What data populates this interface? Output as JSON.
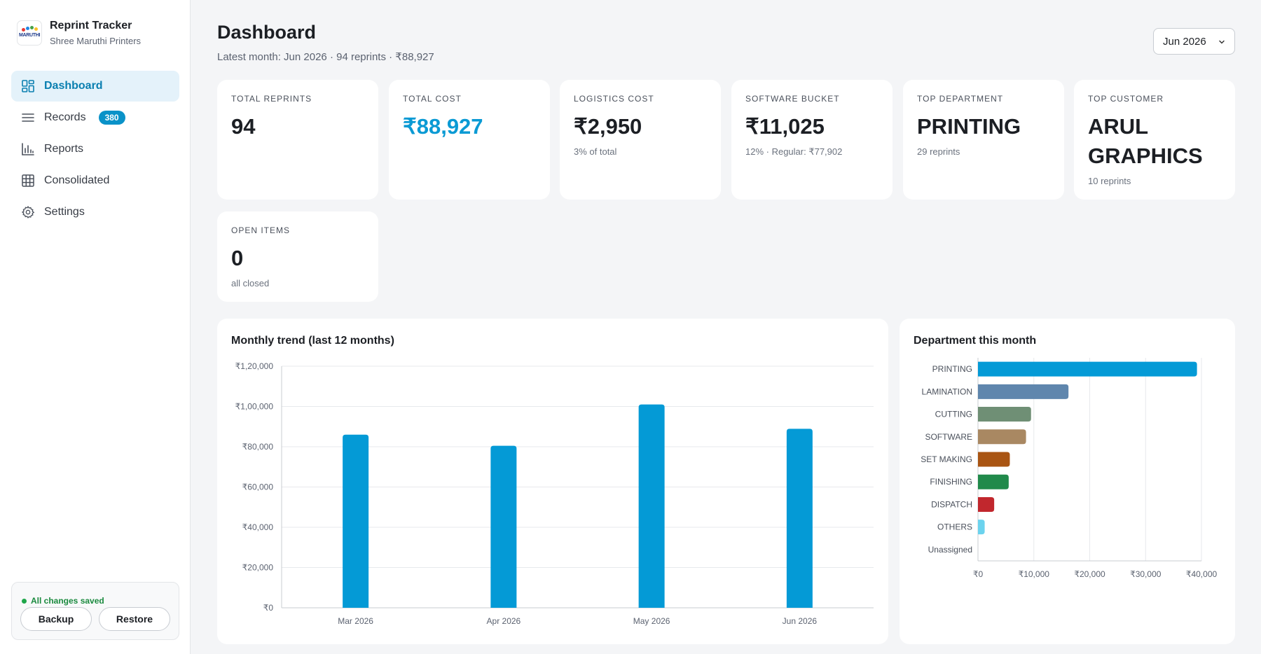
{
  "sidebar": {
    "app_title": "Reprint Tracker",
    "company": "Shree Maruthi Printers",
    "logo_text": "MARUTHI",
    "items": [
      {
        "label": "Dashboard",
        "icon": "dashboard-icon",
        "active": true
      },
      {
        "label": "Records",
        "icon": "list-icon",
        "badge": "380"
      },
      {
        "label": "Reports",
        "icon": "bar-chart-icon"
      },
      {
        "label": "Consolidated",
        "icon": "grid-icon"
      },
      {
        "label": "Settings",
        "icon": "gear-icon"
      }
    ],
    "save_status": "All changes saved",
    "backup_label": "Backup",
    "restore_label": "Restore"
  },
  "header": {
    "title": "Dashboard",
    "subtitle": "Latest month: Jun 2026 · 94 reprints · ₹88,927",
    "month_selected": "Jun 2026"
  },
  "kpis": [
    {
      "label": "TOTAL REPRINTS",
      "value": "94",
      "note": ""
    },
    {
      "label": "TOTAL COST",
      "value": "₹88,927",
      "note": ""
    },
    {
      "label": "LOGISTICS COST",
      "value": "₹2,950",
      "note": "3% of total"
    },
    {
      "label": "SOFTWARE BUCKET",
      "value": "₹11,025",
      "note": "12% · Regular: ₹77,902"
    },
    {
      "label": "TOP DEPARTMENT",
      "value": "PRINTING",
      "note": "29 reprints"
    },
    {
      "label": "TOP CUSTOMER",
      "value": "ARUL GRAPHICS",
      "note": "10 reprints"
    },
    {
      "label": "OPEN ITEMS",
      "value": "0",
      "note": "all closed"
    }
  ],
  "colors": {
    "accent": "#0a9ad4",
    "active_nav_bg": "#e4f2fa",
    "badge": "#0a92c8",
    "saved": "#1a8a3e"
  },
  "chart_data": [
    {
      "type": "bar",
      "title": "Monthly trend (last 12 months)",
      "categories": [
        "Mar 2026",
        "Apr 2026",
        "May 2026",
        "Jun 2026"
      ],
      "values": [
        86000,
        80500,
        101000,
        88927
      ],
      "ylim": [
        0,
        120000
      ],
      "yticks": [
        {
          "value": 0,
          "label": "₹0"
        },
        {
          "value": 20000,
          "label": "₹20,000"
        },
        {
          "value": 40000,
          "label": "₹40,000"
        },
        {
          "value": 60000,
          "label": "₹60,000"
        },
        {
          "value": 80000,
          "label": "₹80,000"
        },
        {
          "value": 100000,
          "label": "₹1,00,000"
        },
        {
          "value": 120000,
          "label": "₹1,20,000"
        }
      ],
      "color": "#049ad6",
      "grid": true
    },
    {
      "type": "bar",
      "orientation": "horizontal",
      "title": "Department this month",
      "categories": [
        "PRINTING",
        "LAMINATION",
        "CUTTING",
        "SOFTWARE",
        "SET MAKING",
        "FINISHING",
        "DISPATCH",
        "OTHERS",
        "Unassigned"
      ],
      "values": [
        39200,
        16200,
        9500,
        8600,
        5700,
        5500,
        2900,
        1200,
        0
      ],
      "colors": [
        "#049ad6",
        "#5f86ad",
        "#6f8f75",
        "#a98862",
        "#a95513",
        "#218a4b",
        "#c1272d",
        "#6cd3ee",
        "#999999"
      ],
      "xlim": [
        0,
        40000
      ],
      "xticks": [
        {
          "value": 0,
          "label": "₹0"
        },
        {
          "value": 10000,
          "label": "₹10,000"
        },
        {
          "value": 20000,
          "label": "₹20,000"
        },
        {
          "value": 30000,
          "label": "₹30,000"
        },
        {
          "value": 40000,
          "label": "₹40,000"
        }
      ],
      "grid": true
    }
  ]
}
